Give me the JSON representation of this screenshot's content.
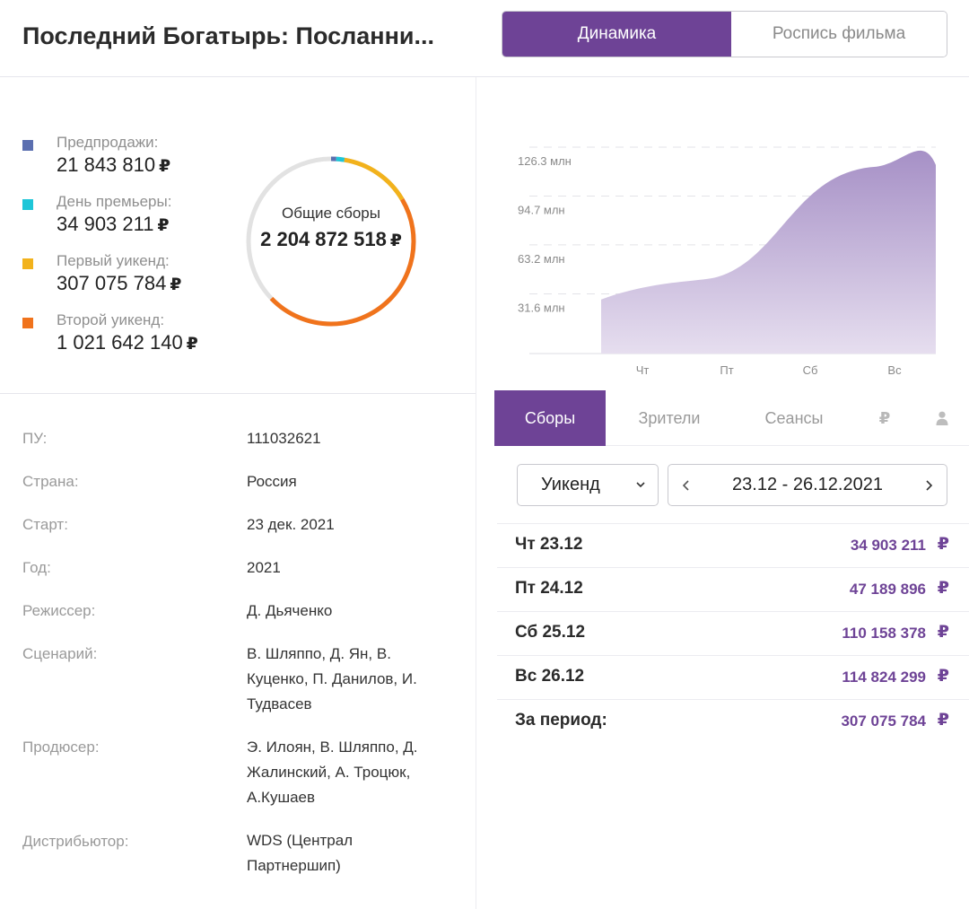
{
  "header": {
    "title": "Последний Богатырь: Посланни...",
    "tabs": [
      {
        "label": "Динамика",
        "active": true
      },
      {
        "label": "Роспись фильма",
        "active": false
      }
    ]
  },
  "colors": {
    "accent": "#6e4396",
    "presales": "#5b6fb0",
    "premiere": "#1ec6d8",
    "first_weekend": "#f2b21c",
    "second_weekend": "#f0731c",
    "donut_track": "#e2e2e2"
  },
  "currency_symbol": "₽",
  "gross_breakdown": {
    "items": [
      {
        "label": "Предпродажи:",
        "value": "21 843 810",
        "color": "#5b6fb0",
        "amount": 21843810
      },
      {
        "label": "День премьеры:",
        "value": "34 903 211",
        "color": "#1ec6d8",
        "amount": 34903211
      },
      {
        "label": "Первый уикенд:",
        "value": "307 075 784",
        "color": "#f2b21c",
        "amount": 307075784
      },
      {
        "label": "Второй уикенд:",
        "value": "1 021 642 140",
        "color": "#f0731c",
        "amount": 1021642140
      }
    ],
    "total_label": "Общие сборы",
    "total_value": "2 204 872 518",
    "total_amount": 2204872518
  },
  "details": [
    {
      "label": "ПУ:",
      "value": "111032621"
    },
    {
      "label": "Страна:",
      "value": "Россия"
    },
    {
      "label": "Старт:",
      "value": "23 дек. 2021"
    },
    {
      "label": "Год:",
      "value": "2021"
    },
    {
      "label": "Режиссер:",
      "value": "Д. Дьяченко"
    },
    {
      "label": "Сценарий:",
      "value": "В. Шляппо, Д. Ян, В. Куценко, П. Данилов, И. Тудвасев"
    },
    {
      "label": "Продюсер:",
      "value": "Э. Илоян, В. Шляппо, Д. Жалинский, А. Троцюк, А.Кушаев"
    },
    {
      "label": "Дистрибьютор:",
      "value": "WDS (Централ Партнершип)"
    }
  ],
  "chart_data": {
    "type": "area",
    "categories": [
      "Чт",
      "Пт",
      "Сб",
      "Вс"
    ],
    "values": [
      34903211,
      47189896,
      110158378,
      114824299
    ],
    "y_ticks": [
      31.6,
      63.2,
      94.7,
      126.3
    ],
    "y_tick_labels": [
      "31.6 млн",
      "63.2 млн",
      "94.7 млн",
      "126.3 млн"
    ],
    "ylim": [
      0,
      126.3
    ],
    "grid": true,
    "color": "#a78fc6"
  },
  "stats_tabs": [
    {
      "label": "Сборы",
      "active": true
    },
    {
      "label": "Зрители",
      "active": false
    },
    {
      "label": "Сеансы",
      "active": false
    },
    {
      "label": "₽",
      "icon": "ruble-icon",
      "active": false
    },
    {
      "label": "",
      "icon": "person-icon",
      "active": false
    }
  ],
  "period_select": {
    "value": "Уикенд"
  },
  "date_range": "23.12 - 26.12.2021",
  "table": [
    {
      "day": "Чт 23.12",
      "value": "34 903 211"
    },
    {
      "day": "Пт 24.12",
      "value": "47 189 896"
    },
    {
      "day": "Сб 25.12",
      "value": "110 158 378"
    },
    {
      "day": "Вс 26.12",
      "value": "114 824 299"
    },
    {
      "day": "За период:",
      "value": "307 075 784"
    }
  ]
}
